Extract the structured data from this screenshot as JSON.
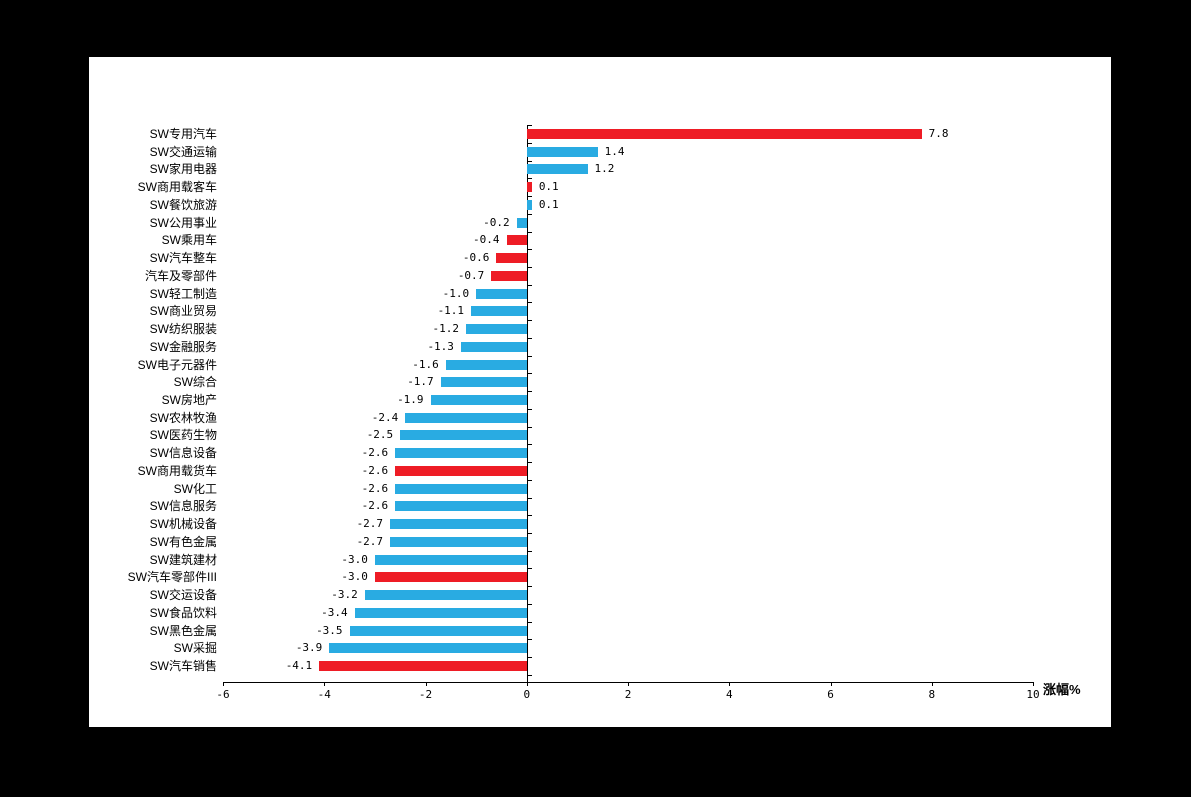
{
  "panel": {
    "background_color": "#ffffff",
    "page_background_color": "#000000"
  },
  "chart_data": {
    "type": "bar",
    "orientation": "horizontal",
    "title": "",
    "xlabel": "涨幅%",
    "ylabel": "",
    "xlim": [
      -6,
      10
    ],
    "x_ticks": [
      "-6",
      "-4",
      "-2",
      "0",
      "2",
      "4",
      "6",
      "8",
      "10"
    ],
    "grid": "off",
    "legend": "none",
    "categories": [
      "SW专用汽车",
      "SW交通运输",
      "SW家用电器",
      "SW商用载客车",
      "SW餐饮旅游",
      "SW公用事业",
      "SW乘用车",
      "SW汽车整车",
      "汽车及零部件",
      "SW轻工制造",
      "SW商业贸易",
      "SW纺织服装",
      "SW金融服务",
      "SW电子元器件",
      "SW综合",
      "SW房地产",
      "SW农林牧渔",
      "SW医药生物",
      "SW信息设备",
      "SW商用载货车",
      "SW化工",
      "SW信息服务",
      "SW机械设备",
      "SW有色金属",
      "SW建筑建材",
      "SW汽车零部件III",
      "SW交运设备",
      "SW食品饮料",
      "SW黑色金属",
      "SW采掘",
      "SW汽车销售"
    ],
    "values": [
      "7.8",
      "1.4",
      "1.2",
      "0.1",
      "0.1",
      "-0.2",
      "-0.4",
      "-0.6",
      "-0.7",
      "-1.0",
      "-1.1",
      "-1.2",
      "-1.3",
      "-1.6",
      "-1.7",
      "-1.9",
      "-2.4",
      "-2.5",
      "-2.6",
      "-2.6",
      "-2.6",
      "-2.6",
      "-2.7",
      "-2.7",
      "-3.0",
      "-3.0",
      "-3.2",
      "-3.4",
      "-3.5",
      "-3.9",
      "-4.1"
    ],
    "bar_colors": [
      "red",
      "blue",
      "blue",
      "red",
      "blue",
      "blue",
      "red",
      "red",
      "red",
      "blue",
      "blue",
      "blue",
      "blue",
      "blue",
      "blue",
      "blue",
      "blue",
      "blue",
      "blue",
      "red",
      "blue",
      "blue",
      "blue",
      "blue",
      "blue",
      "red",
      "blue",
      "blue",
      "blue",
      "blue",
      "red"
    ],
    "palette": {
      "red": "#ee1c25",
      "blue": "#29abe2"
    }
  }
}
